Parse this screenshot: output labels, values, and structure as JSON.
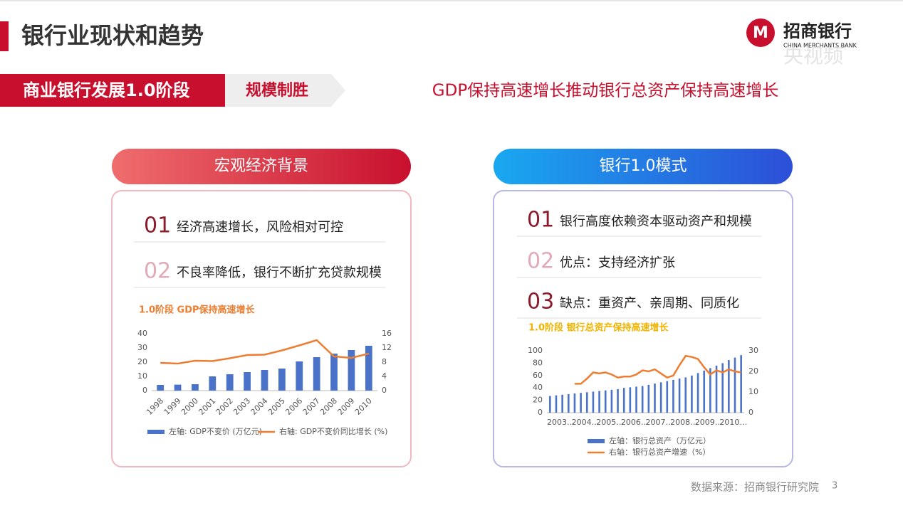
{
  "header": {
    "title": "银行业现状和趋势",
    "logo": "招商银行",
    "logo_en": "CHINA MERCHANTS BANK",
    "watermark": "央视频"
  },
  "banner": {
    "stage": "商业银行发展1.0阶段",
    "tag": "规模制胜",
    "headline": "GDP保持高速增长推动银行总资产保持高速增长"
  },
  "panels": [
    {
      "title": "宏观经济背景",
      "items": [
        {
          "num": "01",
          "text": "经济高速增长，风险相对可控"
        },
        {
          "num": "02",
          "text": "不良率降低，银行不断扩充贷款规模"
        }
      ]
    },
    {
      "title": "银行1.0模式",
      "items": [
        {
          "num": "01",
          "text": "银行高度依赖资本驱动资产和规模"
        },
        {
          "num": "02",
          "text": "优点：支持经济扩张"
        },
        {
          "num": "03",
          "text": "缺点：重资产、亲周期、同质化"
        }
      ]
    }
  ],
  "chart_data": [
    {
      "type": "bar",
      "title": "1.0阶段  GDP保持高速增长",
      "categories": [
        "1998",
        "1999",
        "2000",
        "2001",
        "2002",
        "2003",
        "2004",
        "2005",
        "2006",
        "2007",
        "2008",
        "2009",
        "2010"
      ],
      "series": [
        {
          "name": "左轴: GDP不变价 (万亿元)",
          "color": "#4a72c8",
          "type": "bar",
          "values": [
            4,
            4.2,
            4.5,
            10,
            11.5,
            13,
            14.5,
            15.5,
            20.5,
            23.5,
            26,
            28.5,
            31.5
          ]
        },
        {
          "name": "右轴: GDP不变价同比增长 (%)",
          "color": "#ed7d31",
          "type": "line",
          "axis": "y2",
          "values": [
            7.8,
            7.6,
            8.4,
            8.3,
            9.1,
            10,
            10.1,
            11.3,
            12.7,
            14.2,
            9.6,
            9.2,
            10.4
          ]
        }
      ],
      "ylim": [
        0,
        40
      ],
      "yticks": [
        0,
        10,
        20,
        30,
        40
      ],
      "y2lim": [
        0,
        16
      ],
      "y2ticks": [
        0,
        4,
        8,
        12,
        16
      ]
    },
    {
      "type": "bar",
      "title": "1.0阶段 银行总资产保持高速增长",
      "categories": [
        "2003…",
        null,
        null,
        null,
        "2004…",
        null,
        null,
        null,
        "2005…",
        null,
        null,
        null,
        "2006…",
        null,
        null,
        null,
        "2007…",
        null,
        null,
        null,
        "2008…",
        null,
        null,
        null,
        "2009…",
        null,
        null,
        null,
        "2010…",
        null,
        null,
        null
      ],
      "series": [
        {
          "name": "左轴：银行总资产（万亿元）",
          "color": "#4a72c8",
          "type": "bar",
          "values": [
            27,
            28,
            29,
            30,
            31,
            32,
            33,
            34,
            35,
            36,
            37,
            38,
            40,
            41,
            42,
            43,
            45,
            47,
            49,
            51,
            53,
            55,
            57,
            60,
            64,
            68,
            72,
            76,
            80,
            85,
            89,
            93
          ]
        },
        {
          "name": "右轴：银行总资产增速（%）",
          "color": "#ed7d31",
          "type": "line",
          "axis": "y2",
          "values": [
            null,
            null,
            null,
            null,
            14,
            14,
            16.5,
            19.5,
            19,
            19.5,
            18.5,
            17,
            17.5,
            17.5,
            18.5,
            20.5,
            20,
            21,
            19,
            17,
            18,
            23,
            27.5,
            27,
            26,
            22,
            18.5,
            20.5,
            19.5,
            21,
            20,
            19.5
          ]
        }
      ],
      "ylim": [
        0,
        100
      ],
      "yticks": [
        0,
        20,
        40,
        60,
        80,
        100
      ],
      "y2lim": [
        0,
        30
      ],
      "y2ticks": [
        0,
        10,
        20,
        30
      ]
    }
  ],
  "footer": {
    "source": "数据来源：招商银行研究院",
    "page": "3"
  }
}
